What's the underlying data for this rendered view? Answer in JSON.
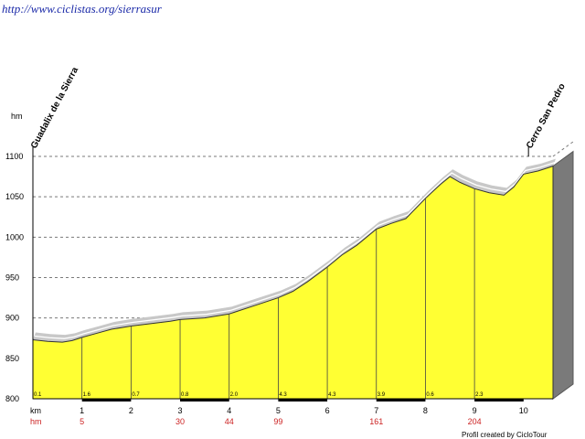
{
  "header": {
    "url": "http://www.ciclistas.org/sierrasur"
  },
  "footer": {
    "credit": "Profil created by CicloTour"
  },
  "chart_data": {
    "type": "area",
    "title": "",
    "xlabel": "km",
    "ylabel": "hm",
    "xlim": [
      0,
      10.6
    ],
    "ylim": [
      800,
      1100
    ],
    "yticks": [
      800,
      850,
      900,
      950,
      1000,
      1050,
      1100
    ],
    "xticks": [
      1,
      2,
      3,
      4,
      5,
      6,
      7,
      8,
      9,
      10
    ],
    "grid": true,
    "colors": {
      "fill": "#ffff33",
      "shadow": "#c8c8c8",
      "side": "#7a7a7a",
      "grid": "#7a7a7a",
      "marker": "#cc2222"
    },
    "waypoints": [
      {
        "name": "Guadalix de la Sierra",
        "km": 0
      },
      {
        "name": "Cerro San Pedro",
        "km": 10.1
      }
    ],
    "segment_gradients": [
      {
        "km": 0,
        "label": "0.1"
      },
      {
        "km": 1,
        "label": "1.6"
      },
      {
        "km": 2,
        "label": "0.7"
      },
      {
        "km": 3,
        "label": "0.8"
      },
      {
        "km": 4,
        "label": "2.0"
      },
      {
        "km": 5,
        "label": "4.3"
      },
      {
        "km": 6,
        "label": "4.3"
      },
      {
        "km": 7,
        "label": "3.9"
      },
      {
        "km": 8,
        "label": "0.6"
      },
      {
        "km": 9,
        "label": "2.3"
      }
    ],
    "cumulative_hm": {
      "label": "hm",
      "points": [
        {
          "km": 1,
          "value": "5"
        },
        {
          "km": 3,
          "value": "30"
        },
        {
          "km": 4,
          "value": "44"
        },
        {
          "km": 5,
          "value": "99"
        },
        {
          "km": 7,
          "value": "161"
        },
        {
          "km": 9,
          "value": "204"
        }
      ]
    },
    "profile": {
      "x": [
        0,
        0.3,
        0.6,
        0.8,
        1,
        1.3,
        1.6,
        2,
        2.4,
        2.8,
        3,
        3.5,
        4,
        4.5,
        5,
        5.3,
        5.6,
        6,
        6.3,
        6.6,
        7,
        7.3,
        7.6,
        8,
        8.3,
        8.5,
        8.7,
        9,
        9.3,
        9.6,
        9.8,
        10,
        10.3,
        10.6
      ],
      "y": [
        873,
        871,
        870,
        872,
        876,
        881,
        886,
        890,
        893,
        896,
        898,
        900,
        905,
        915,
        925,
        933,
        945,
        963,
        978,
        990,
        1010,
        1017,
        1023,
        1048,
        1065,
        1075,
        1068,
        1060,
        1055,
        1052,
        1062,
        1078,
        1082,
        1088
      ]
    }
  }
}
